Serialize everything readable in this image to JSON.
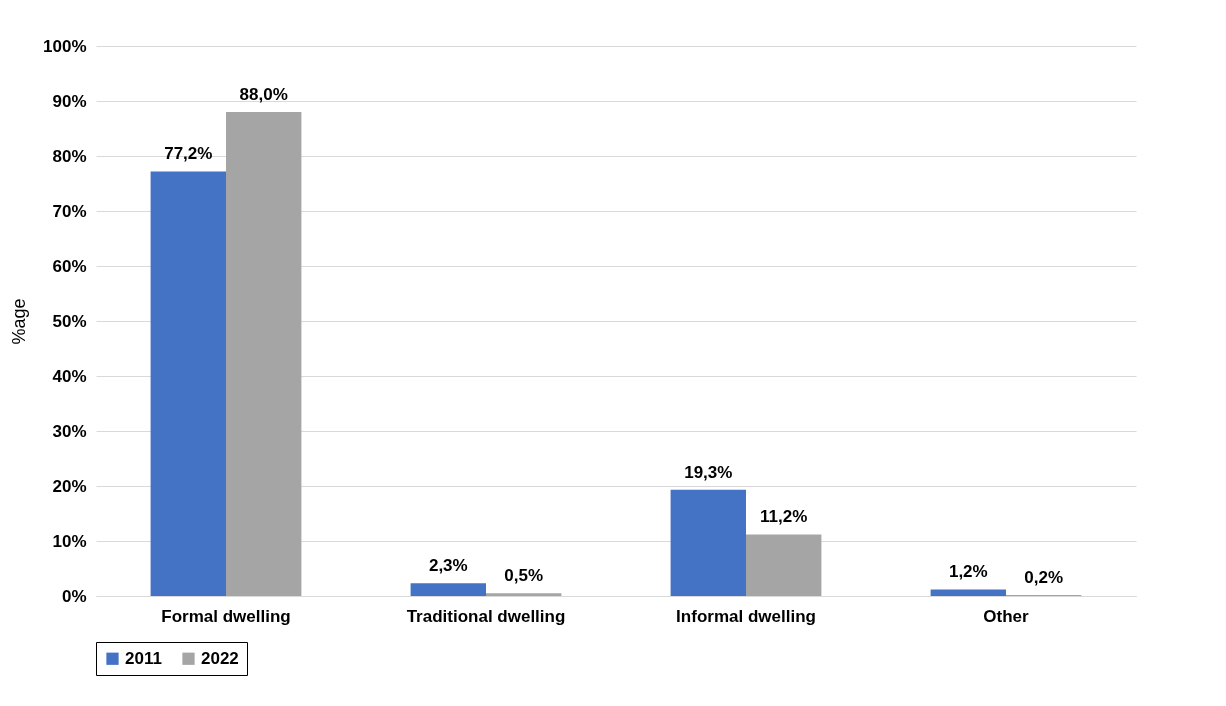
{
  "chart_data": {
    "type": "bar",
    "ylabel": "%age",
    "categories": [
      "Formal dwelling",
      "Traditional dwelling",
      "Informal dwelling",
      "Other"
    ],
    "series": [
      {
        "name": "2011",
        "color": "#4472c4",
        "values": [
          77.2,
          2.3,
          19.3,
          1.2
        ],
        "value_labels": [
          "77,2%",
          "2,3%",
          "19,3%",
          "1,2%"
        ]
      },
      {
        "name": "2022",
        "color": "#a5a5a5",
        "values": [
          88.0,
          0.5,
          11.2,
          0.2
        ],
        "value_labels": [
          "88,0%",
          "0,5%",
          "11,2%",
          "0,2%"
        ]
      }
    ],
    "ylim": [
      0,
      100
    ],
    "yticks": [
      {
        "value": 0,
        "label": "0%"
      },
      {
        "value": 10,
        "label": "10%"
      },
      {
        "value": 20,
        "label": "20%"
      },
      {
        "value": 30,
        "label": "30%"
      },
      {
        "value": 40,
        "label": "40%"
      },
      {
        "value": 50,
        "label": "50%"
      },
      {
        "value": 60,
        "label": "60%"
      },
      {
        "value": 70,
        "label": "70%"
      },
      {
        "value": 80,
        "label": "80%"
      },
      {
        "value": 90,
        "label": "90%"
      },
      {
        "value": 100,
        "label": "100%"
      }
    ],
    "grid": "y",
    "legend": "bottom"
  }
}
